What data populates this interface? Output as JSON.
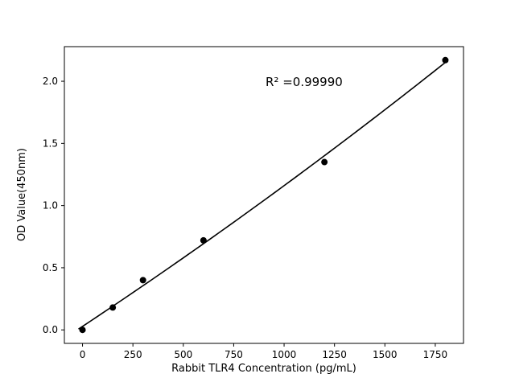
{
  "figure": {
    "background": "#ffffff"
  },
  "chart_data": {
    "type": "scatter",
    "title": "",
    "xlabel": "Rabbit TLR4 Concentration (pg/mL)",
    "ylabel": "OD Value(450nm)",
    "annotation": "R² =0.99990",
    "points": {
      "x": [
        0,
        150,
        300,
        600,
        1200,
        1800
      ],
      "y": [
        0.0,
        0.18,
        0.4,
        0.72,
        1.35,
        2.17
      ]
    },
    "fit_line": {
      "kind": "quadratic",
      "a": 0.0282,
      "b": 0.0010729,
      "c": 5.923e-08,
      "x_start": -20,
      "x_end": 1800
    },
    "xticks": {
      "values": [
        0,
        250,
        500,
        750,
        1000,
        1250,
        1500,
        1750
      ],
      "labels": [
        "0",
        "250",
        "500",
        "750",
        "1000",
        "1250",
        "1500",
        "1750"
      ]
    },
    "yticks": {
      "values": [
        0.0,
        0.5,
        1.0,
        1.5,
        2.0
      ],
      "labels": [
        "0.0",
        "0.5",
        "1.0",
        "1.5",
        "2.0"
      ]
    },
    "xlim": [
      -90,
      1890
    ],
    "ylim": [
      -0.1085,
      2.2785
    ],
    "grid": false,
    "marker_color": "#000000",
    "line_color": "#000000",
    "frame_color": "#000000"
  }
}
